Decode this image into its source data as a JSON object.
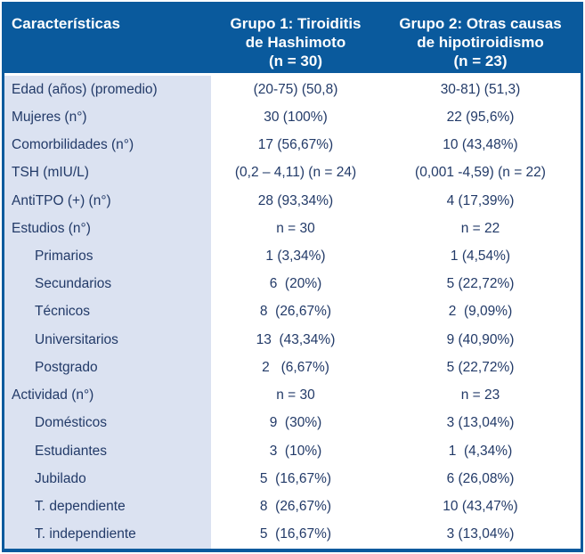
{
  "colors": {
    "header_bg": "#0a5a9d",
    "label_column_bg": "#dbe2f1",
    "body_text": "#223a68",
    "header_text": "#ffffff"
  },
  "table": {
    "header": {
      "col1": "Características",
      "col2": "Grupo 1: Tiroiditis\nde Hashimoto\n(n = 30)",
      "col3": "Grupo 2: Otras causas\nde hipotiroidismo\n(n = 23)"
    },
    "rows": [
      {
        "label": "Edad (años) (promedio)",
        "indent": false,
        "group1": "(20-75) (50,8)",
        "group2": "30-81) (51,3)"
      },
      {
        "label": "Mujeres (n°)",
        "indent": false,
        "group1": "30 (100%)",
        "group2": "22 (95,6%)"
      },
      {
        "label": "Comorbilidades (n°)",
        "indent": false,
        "group1": "17 (56,67%)",
        "group2": "10 (43,48%)"
      },
      {
        "label": "TSH (mIU/L)",
        "indent": false,
        "group1": "(0,2 – 4,11) (n = 24)",
        "group2": "(0,001 -4,59) (n = 22)"
      },
      {
        "label": "AntiTPO (+) (n°)",
        "indent": false,
        "group1": "28 (93,34%)",
        "group2": "4 (17,39%)"
      },
      {
        "label": "Estudios (n°)",
        "indent": false,
        "group1": "n = 30",
        "group2": "n = 22"
      },
      {
        "label": "Primarios",
        "indent": true,
        "group1": "1 (3,34%)",
        "group2": "1 (4,54%)"
      },
      {
        "label": "Secundarios",
        "indent": true,
        "group1": "6  (20%)",
        "group2": "5 (22,72%)"
      },
      {
        "label": "Técnicos",
        "indent": true,
        "group1": "8  (26,67%)",
        "group2": "2  (9,09%)"
      },
      {
        "label": "Universitarios",
        "indent": true,
        "group1": "13  (43,34%)",
        "group2": "9 (40,90%)"
      },
      {
        "label": "Postgrado",
        "indent": true,
        "group1": "2   (6,67%)",
        "group2": "5 (22,72%)"
      },
      {
        "label": "Actividad (n°)",
        "indent": false,
        "group1": "n = 30",
        "group2": "n = 23"
      },
      {
        "label": "Domésticos",
        "indent": true,
        "group1": "9  (30%)",
        "group2": "3 (13,04%)"
      },
      {
        "label": "Estudiantes",
        "indent": true,
        "group1": "3  (10%)",
        "group2": "1  (4,34%)"
      },
      {
        "label": "Jubilado",
        "indent": true,
        "group1": "5  (16,67%)",
        "group2": "6 (26,08%)"
      },
      {
        "label": "T. dependiente",
        "indent": true,
        "group1": "8  (26,67%)",
        "group2": "10 (43,47%)"
      },
      {
        "label": "T. independiente",
        "indent": true,
        "group1": "5  (16,67%)",
        "group2": "3 (13,04%)"
      }
    ]
  }
}
